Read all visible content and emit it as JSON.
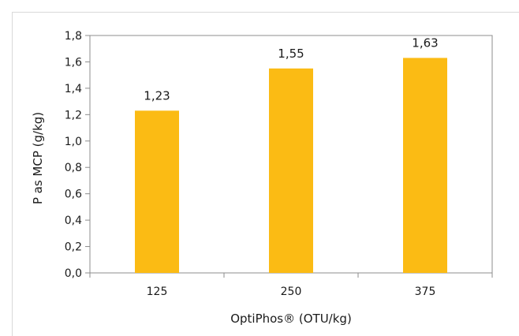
{
  "chart_data": {
    "type": "bar",
    "categories": [
      "125",
      "250",
      "375"
    ],
    "values": [
      1.23,
      1.55,
      1.63
    ],
    "data_labels": [
      "1,23",
      "1,55",
      "1,63"
    ],
    "xlabel": "OptiPhos® (OTU/kg)",
    "ylabel": "P as MCP (g/kg)",
    "ylim": [
      0,
      1.8
    ],
    "yticks": [
      0,
      0.2,
      0.4,
      0.6,
      0.8,
      1.0,
      1.2,
      1.4,
      1.6,
      1.8
    ],
    "ytick_labels": [
      "0,0",
      "0,2",
      "0,4",
      "0,6",
      "0,8",
      "1,0",
      "1,2",
      "1,4",
      "1,6",
      "1,8"
    ],
    "grid": false,
    "bar_color": "#fbbb14",
    "axis_color": "#8c8c8c"
  }
}
